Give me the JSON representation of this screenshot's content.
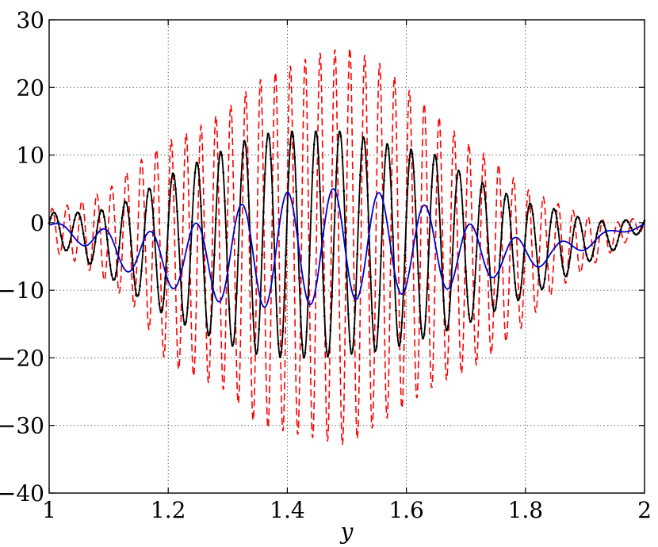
{
  "chart_data": {
    "type": "line",
    "title": "",
    "xlabel": "y",
    "ylabel": "",
    "xlim": [
      1,
      2
    ],
    "ylim": [
      -40,
      30
    ],
    "xticks": [
      1,
      1.2,
      1.4,
      1.6,
      1.8,
      2
    ],
    "xtick_labels": [
      "1",
      "1.2",
      "1.4",
      "1.6",
      "1.8",
      "2"
    ],
    "yticks": [
      -40,
      -30,
      -20,
      -10,
      0,
      10,
      20,
      30
    ],
    "ytick_labels": [
      "−40",
      "−30",
      "−20",
      "−10",
      "0",
      "10",
      "20",
      "30"
    ],
    "grid": true,
    "series": [
      {
        "color": "#ff0000",
        "style": "dashed",
        "description_source": "oscillating dashed red curve",
        "x": [
          1.0,
          1.05,
          1.1,
          1.15,
          1.2,
          1.25,
          1.3,
          1.35,
          1.4,
          1.45,
          1.5,
          1.55,
          1.6,
          1.65,
          1.7,
          1.75,
          1.8,
          1.85,
          1.9,
          1.95,
          2.0
        ],
        "upper": [
          2,
          3,
          5,
          9,
          12,
          14,
          17,
          21,
          23,
          25,
          26,
          24,
          20,
          16,
          12,
          9,
          5,
          3,
          1,
          0,
          1
        ],
        "lower": [
          -4,
          -6,
          -9,
          -13,
          -21,
          -23,
          -25,
          -30,
          -31,
          -32,
          -33,
          -30,
          -27,
          -24,
          -22,
          -19,
          -15,
          -10,
          -7,
          -4,
          -1
        ]
      },
      {
        "color": "#000000",
        "style": "solid-dotted",
        "x": [
          1.0,
          1.05,
          1.1,
          1.15,
          1.2,
          1.25,
          1.3,
          1.35,
          1.4,
          1.45,
          1.5,
          1.55,
          1.6,
          1.65,
          1.7,
          1.75,
          1.8,
          1.85,
          1.9,
          1.95,
          2.0
        ],
        "upper": [
          1.5,
          1.5,
          2,
          4,
          7,
          9,
          11,
          13,
          13.5,
          13.5,
          13.5,
          12,
          11,
          10,
          7,
          5,
          3,
          2,
          0.5,
          0,
          1
        ],
        "lower": [
          -3,
          -5,
          -8,
          -11,
          -14,
          -16,
          -18,
          -19.5,
          -20,
          -20,
          -19.5,
          -19,
          -18,
          -16.5,
          -15,
          -13,
          -11,
          -9,
          -6,
          -4,
          -1
        ]
      },
      {
        "color": "#0000cc",
        "style": "solid",
        "x": [
          1.0,
          1.05,
          1.1,
          1.15,
          1.2,
          1.25,
          1.3,
          1.35,
          1.4,
          1.45,
          1.5,
          1.55,
          1.6,
          1.65,
          1.7,
          1.75,
          1.8,
          1.85,
          1.9,
          1.95,
          2.0
        ],
        "upper": [
          0,
          -0.5,
          -1,
          -1.5,
          -1,
          0,
          2,
          3.5,
          4.5,
          5,
          5,
          4.5,
          3.5,
          2,
          0,
          -1.5,
          -2.5,
          -3,
          -2,
          -1,
          0
        ],
        "lower": [
          -1,
          -3,
          -6,
          -8,
          -9.5,
          -11,
          -12,
          -12.5,
          -12.5,
          -12,
          -11.5,
          -11,
          -10.5,
          -10,
          -9.5,
          -8,
          -7,
          -6,
          -4,
          -2,
          -0.5
        ]
      }
    ]
  }
}
